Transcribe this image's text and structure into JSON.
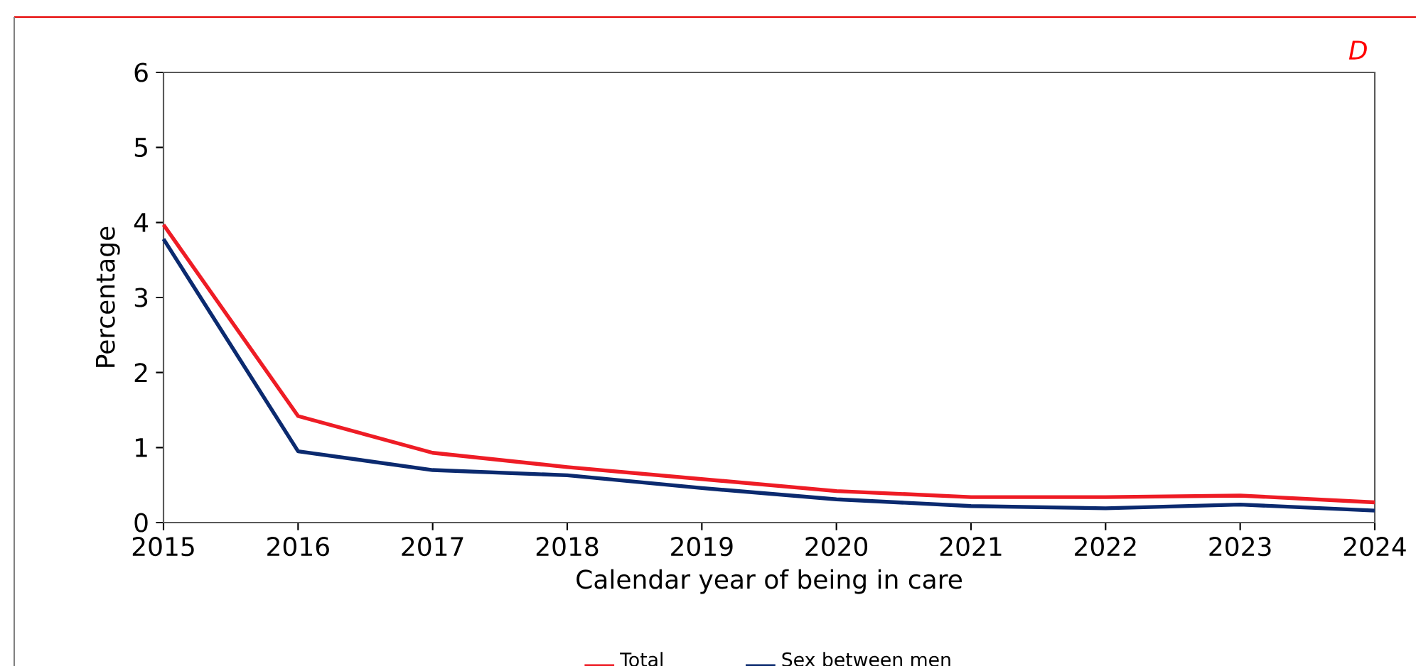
{
  "chart_data": {
    "type": "line",
    "xlabel": "Calendar year of being in care",
    "ylabel": "Percentage",
    "annotations": [
      "D"
    ],
    "x": [
      2015,
      2016,
      2017,
      2018,
      2019,
      2020,
      2021,
      2022,
      2023,
      2024
    ],
    "series": [
      {
        "name": "Total",
        "color": "#ee1c25",
        "values": [
          3.97,
          1.42,
          0.93,
          0.74,
          0.58,
          0.42,
          0.34,
          0.34,
          0.36,
          0.27
        ]
      },
      {
        "name": "Sex between men",
        "color": "#0b2a6f",
        "values": [
          3.78,
          0.95,
          0.7,
          0.63,
          0.46,
          0.31,
          0.22,
          0.19,
          0.24,
          0.16
        ]
      }
    ],
    "xlim": [
      2015,
      2024
    ],
    "xticks": [
      2015,
      2016,
      2017,
      2018,
      2019,
      2020,
      2021,
      2022,
      2023,
      2024
    ],
    "ylim": [
      0,
      6
    ],
    "yticks": [
      0,
      1,
      2,
      3,
      4,
      5,
      6
    ],
    "grid": false,
    "legend": "bottom",
    "marker": "none",
    "line_style": "solid"
  }
}
